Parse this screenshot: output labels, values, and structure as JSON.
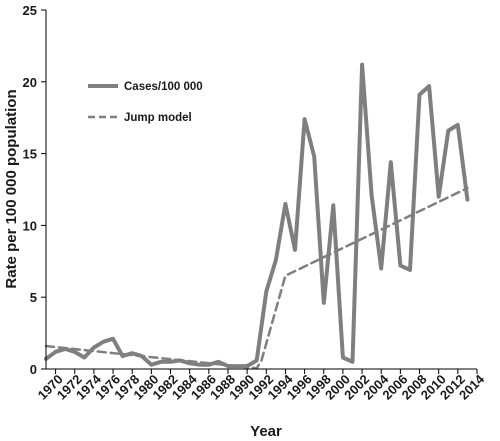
{
  "chart_data": {
    "type": "line",
    "title": "",
    "xlabel": "Year",
    "ylabel": "Rate per 100 000 population",
    "xlim": [
      1969,
      2014
    ],
    "ylim": [
      0,
      25
    ],
    "yticks": [
      0,
      5,
      10,
      15,
      20,
      25
    ],
    "xticks": [
      1970,
      1972,
      1974,
      1976,
      1978,
      1980,
      1982,
      1984,
      1986,
      1988,
      1990,
      1992,
      1994,
      1996,
      1998,
      2000,
      2002,
      2004,
      2006,
      2008,
      2010,
      2012,
      2014
    ],
    "grid": false,
    "legend_position": "upper-left",
    "colors": {
      "series": "#7f7f7f",
      "axis": "#000000"
    },
    "series": [
      {
        "name": "Cases/100 000",
        "style": "solid",
        "x": [
          1969,
          1970,
          1971,
          1972,
          1973,
          1974,
          1975,
          1976,
          1977,
          1978,
          1979,
          1980,
          1981,
          1982,
          1983,
          1984,
          1985,
          1986,
          1987,
          1988,
          1989,
          1990,
          1991,
          1992,
          1993,
          1994,
          1995,
          1996,
          1997,
          1998,
          1999,
          2000,
          2001,
          2002,
          2003,
          2004,
          2005,
          2006,
          2007,
          2008,
          2009,
          2010,
          2011,
          2012,
          2013
        ],
        "values": [
          0.7,
          1.2,
          1.4,
          1.2,
          0.8,
          1.5,
          1.9,
          2.1,
          0.9,
          1.1,
          0.9,
          0.3,
          0.5,
          0.5,
          0.6,
          0.4,
          0.3,
          0.3,
          0.5,
          0.2,
          0.2,
          0.2,
          0.6,
          5.4,
          7.6,
          11.5,
          8.3,
          17.4,
          14.8,
          4.6,
          11.4,
          0.8,
          0.5,
          21.2,
          12.1,
          7.0,
          14.4,
          7.2,
          6.9,
          19.1,
          19.7,
          12.0,
          16.6,
          17.0,
          11.8
        ]
      },
      {
        "name": "Jump model",
        "style": "dashed",
        "x": [
          1969,
          1991,
          1991.5,
          1994,
          2013
        ],
        "values": [
          1.6,
          0.05,
          0.6,
          6.5,
          12.6
        ]
      }
    ]
  }
}
